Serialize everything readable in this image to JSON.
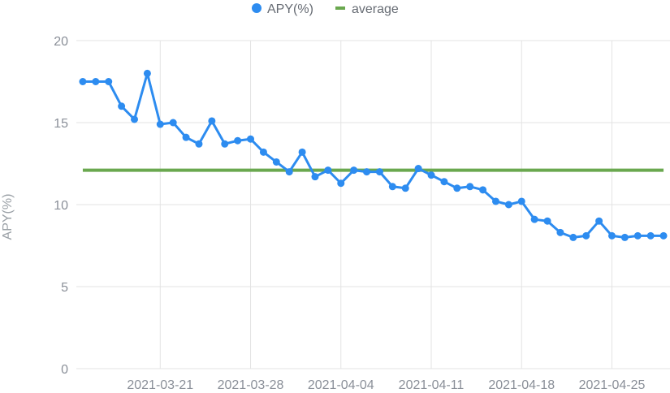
{
  "chart_data": {
    "type": "line",
    "ylabel": "APY(%)",
    "ylim": [
      0,
      20
    ],
    "yticks": [
      0,
      5,
      10,
      15,
      20
    ],
    "x_tick_labels": [
      "2021-03-21",
      "2021-03-28",
      "2021-04-04",
      "2021-04-11",
      "2021-04-18",
      "2021-04-25"
    ],
    "x": [
      "2021-03-15",
      "2021-03-16",
      "2021-03-17",
      "2021-03-18",
      "2021-03-19",
      "2021-03-20",
      "2021-03-21",
      "2021-03-22",
      "2021-03-23",
      "2021-03-24",
      "2021-03-25",
      "2021-03-26",
      "2021-03-27",
      "2021-03-28",
      "2021-03-29",
      "2021-03-30",
      "2021-03-31",
      "2021-04-01",
      "2021-04-02",
      "2021-04-03",
      "2021-04-04",
      "2021-04-05",
      "2021-04-06",
      "2021-04-07",
      "2021-04-08",
      "2021-04-09",
      "2021-04-10",
      "2021-04-11",
      "2021-04-12",
      "2021-04-13",
      "2021-04-14",
      "2021-04-15",
      "2021-04-16",
      "2021-04-17",
      "2021-04-18",
      "2021-04-19",
      "2021-04-20",
      "2021-04-21",
      "2021-04-22",
      "2021-04-23",
      "2021-04-24",
      "2021-04-25",
      "2021-04-26",
      "2021-04-27",
      "2021-04-28",
      "2021-04-29"
    ],
    "series": [
      {
        "name": "APY(%)",
        "color": "#2d8cf0",
        "marker": "circle",
        "values": [
          17.5,
          17.5,
          17.5,
          16.0,
          15.2,
          18.0,
          14.9,
          15.0,
          14.1,
          13.7,
          15.1,
          13.7,
          13.9,
          14.0,
          13.2,
          12.6,
          12.0,
          13.2,
          11.7,
          12.1,
          11.3,
          12.1,
          12.0,
          12.0,
          11.1,
          11.0,
          12.2,
          11.8,
          11.4,
          11.0,
          11.1,
          10.9,
          10.2,
          10.0,
          10.2,
          9.1,
          9.0,
          8.3,
          8.0,
          8.1,
          9.0,
          8.1,
          8.0,
          8.1,
          8.1,
          8.1
        ]
      },
      {
        "name": "average",
        "color": "#6aa84f",
        "marker": "line",
        "values": [
          12.1,
          12.1,
          12.1,
          12.1,
          12.1,
          12.1,
          12.1,
          12.1,
          12.1,
          12.1,
          12.1,
          12.1,
          12.1,
          12.1,
          12.1,
          12.1,
          12.1,
          12.1,
          12.1,
          12.1,
          12.1,
          12.1,
          12.1,
          12.1,
          12.1,
          12.1,
          12.1,
          12.1,
          12.1,
          12.1,
          12.1,
          12.1,
          12.1,
          12.1,
          12.1,
          12.1,
          12.1,
          12.1,
          12.1,
          12.1,
          12.1,
          12.1,
          12.1,
          12.1,
          12.1,
          12.1
        ]
      }
    ],
    "grid": true,
    "legend_position": "top-center"
  }
}
